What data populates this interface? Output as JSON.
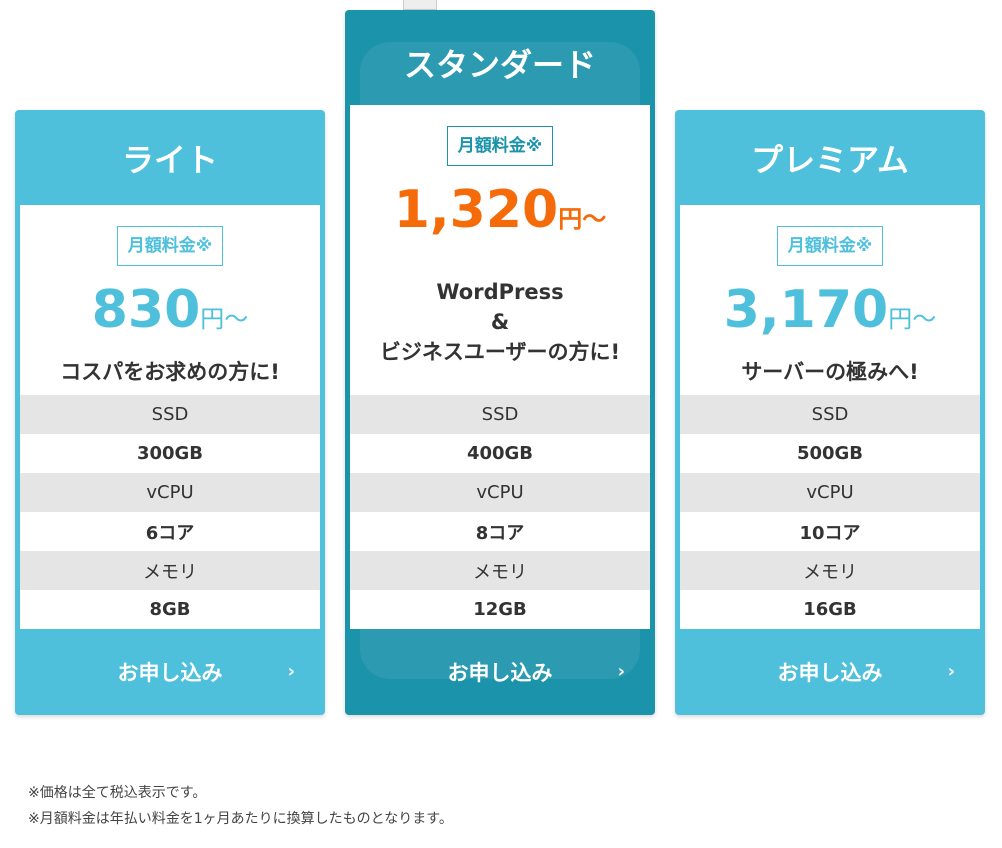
{
  "plans": [
    {
      "name": "ライト",
      "badge": "月額料金※",
      "price": "830",
      "unit": "円〜",
      "tagline": "コスパをお求めの方に!",
      "specs": [
        {
          "label": "SSD",
          "value": "300GB"
        },
        {
          "label": "vCPU",
          "value": "6コア"
        },
        {
          "label": "メモリ",
          "value": "8GB"
        }
      ],
      "cta": "お申し込み"
    },
    {
      "name": "スタンダード",
      "badge": "月額料金※",
      "price": "1,320",
      "unit": "円〜",
      "tagline_lines": [
        "WordPress",
        "&",
        "ビジネスユーザーの方に!"
      ],
      "specs": [
        {
          "label": "SSD",
          "value": "400GB"
        },
        {
          "label": "vCPU",
          "value": "8コア"
        },
        {
          "label": "メモリ",
          "value": "12GB"
        }
      ],
      "cta": "お申し込み"
    },
    {
      "name": "プレミアム",
      "badge": "月額料金※",
      "price": "3,170",
      "unit": "円〜",
      "tagline": "サーバーの極みへ!",
      "specs": [
        {
          "label": "SSD",
          "value": "500GB"
        },
        {
          "label": "vCPU",
          "value": "10コア"
        },
        {
          "label": "メモリ",
          "value": "16GB"
        }
      ],
      "cta": "お申し込み"
    }
  ],
  "chevron": "›",
  "notes": [
    "※価格は全て税込表示です。",
    "※月額料金は年払い料金を1ヶ月あたりに換算したものとなります。"
  ],
  "colors": {
    "light": "#4ec0dc",
    "dark": "#1b93ab",
    "price_highlight": "#f56b0a"
  }
}
